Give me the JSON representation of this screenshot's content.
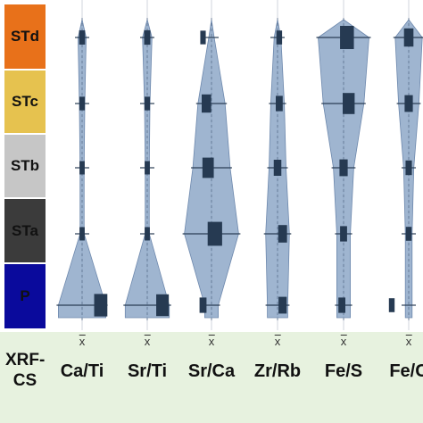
{
  "units": [
    {
      "label": "STd",
      "color": "#e8711a"
    },
    {
      "label": "STc",
      "color": "#e6c24f"
    },
    {
      "label": "STb",
      "color": "#c6c6c6"
    },
    {
      "label": "STa",
      "color": "#3b3b3b"
    },
    {
      "label": "P",
      "color": "#0a0a9c"
    }
  ],
  "footer": {
    "row_label": "XRF-CS",
    "mean_symbol": "x",
    "variables": [
      "Ca/Ti",
      "Sr/Ti",
      "Sr/Ca",
      "Zr/Rb",
      "Fe/S",
      "Fe/C"
    ]
  },
  "chart_data": {
    "type": "kite diagram",
    "description_units": "relative width per unit (0–1 of max column width)",
    "categories": [
      "STd",
      "STc",
      "STb",
      "STa",
      "P"
    ],
    "series": [
      {
        "name": "Ca/Ti",
        "widths": [
          0.12,
          0.08,
          0.06,
          0.06,
          0.7
        ],
        "mean_offsets": [
          0.0,
          0.0,
          0.0,
          0.0,
          0.55
        ]
      },
      {
        "name": "Sr/Ti",
        "widths": [
          0.14,
          0.08,
          0.06,
          0.06,
          0.65
        ],
        "mean_offsets": [
          0.0,
          0.0,
          0.0,
          0.0,
          0.45
        ]
      },
      {
        "name": "Sr/Ca",
        "widths": [
          0.08,
          0.4,
          0.55,
          0.8,
          0.2
        ],
        "mean_offsets": [
          -0.25,
          -0.15,
          -0.1,
          0.1,
          -0.25
        ]
      },
      {
        "name": "Zr/Rb",
        "widths": [
          0.1,
          0.2,
          0.25,
          0.35,
          0.3
        ],
        "mean_offsets": [
          0.05,
          0.05,
          0.0,
          0.15,
          0.15
        ]
      },
      {
        "name": "Fe/S",
        "widths": [
          0.75,
          0.6,
          0.3,
          0.2,
          0.2
        ],
        "mean_offsets": [
          0.1,
          0.15,
          0.0,
          0.0,
          -0.05
        ]
      },
      {
        "name": "Fe/C",
        "widths": [
          0.4,
          0.3,
          0.15,
          0.1,
          0.1
        ],
        "mean_offsets": [
          0.0,
          0.0,
          0.0,
          0.0,
          -0.5
        ]
      }
    ]
  }
}
